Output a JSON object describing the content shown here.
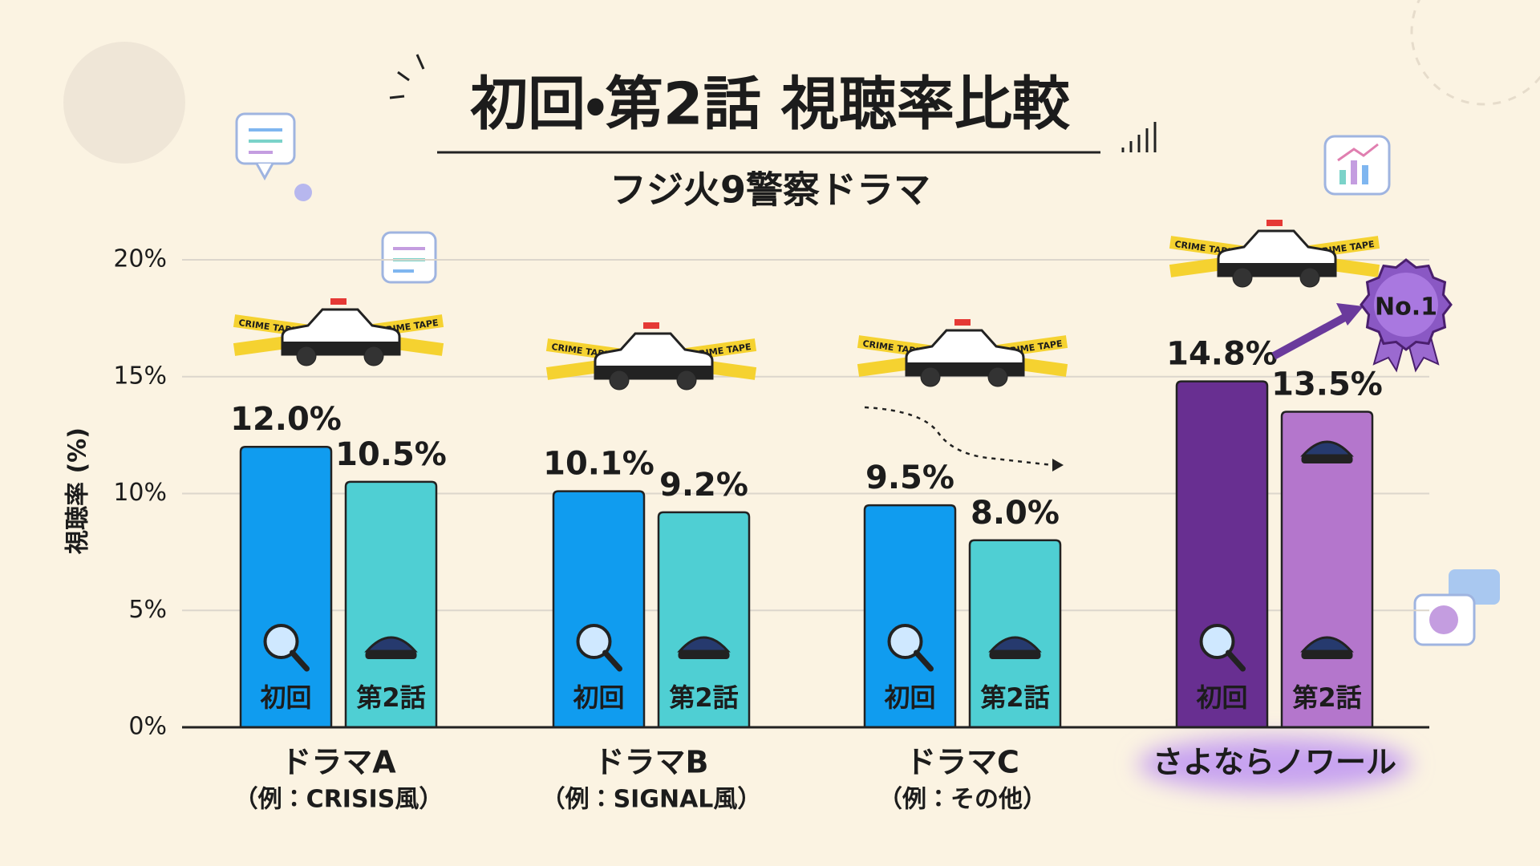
{
  "chart_data": {
    "type": "bar",
    "title": "初回・第2話 視聴率比較",
    "subtitle": "フジ火9警察ドラマ",
    "y_label": "視聴率 (%)",
    "categories": [
      "ドラマA",
      "ドラマB",
      "ドラマC",
      "さよならノワール"
    ],
    "category_notes": [
      "（例：CRISIS風）",
      "（例：SIGNAL風）",
      "（例：その他）",
      null
    ],
    "highlight_category": 3,
    "series": [
      {
        "name": "初回",
        "color": "#109cef",
        "highlight_color": "#682f91",
        "values": [
          12.0,
          10.1,
          9.5,
          14.8
        ],
        "value_labels": [
          "12.0%",
          "10.1%",
          "9.5%",
          "14.8%"
        ]
      },
      {
        "name": "第2話",
        "color": "#4fcfd3",
        "highlight_color": "#b476cc",
        "values": [
          10.5,
          9.2,
          8.0,
          13.5
        ],
        "value_labels": [
          "10.5%",
          "9.2%",
          "8.0%",
          "13.5%"
        ]
      }
    ],
    "ylim": [
      0,
      20
    ],
    "yticks": [
      {
        "value": 0,
        "label": "0%"
      },
      {
        "value": 5,
        "label": "5%"
      },
      {
        "value": 10,
        "label": "10%"
      },
      {
        "value": 15,
        "label": "15%"
      },
      {
        "value": 20,
        "label": "20%"
      }
    ],
    "grid": true,
    "badge": "No.1",
    "tape_text": "CRIME TAPE"
  }
}
